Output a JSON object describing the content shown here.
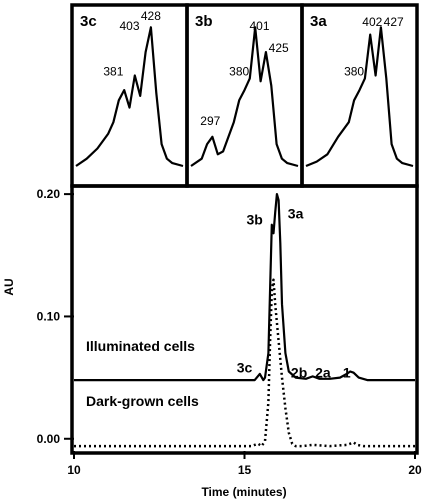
{
  "chart_data": [
    {
      "type": "line",
      "panel_label": "3c",
      "peak_labels": [
        {
          "text": "381",
          "x": 0.35,
          "y": 0.62
        },
        {
          "text": "403",
          "x": 0.5,
          "y": 0.93
        },
        {
          "text": "428",
          "x": 0.7,
          "y": 1.0
        }
      ],
      "spectrum": {
        "x": [
          0.0,
          0.1,
          0.2,
          0.3,
          0.35,
          0.4,
          0.45,
          0.5,
          0.55,
          0.6,
          0.65,
          0.7,
          0.75,
          0.8,
          0.85,
          0.9,
          1.0
        ],
        "y": [
          0.0,
          0.05,
          0.12,
          0.22,
          0.3,
          0.45,
          0.52,
          0.4,
          0.62,
          0.48,
          0.78,
          0.95,
          0.5,
          0.15,
          0.05,
          0.02,
          0.0
        ]
      }
    },
    {
      "type": "line",
      "panel_label": "3b",
      "peak_labels": [
        {
          "text": "297",
          "x": 0.18,
          "y": 0.28
        },
        {
          "text": "380",
          "x": 0.45,
          "y": 0.62
        },
        {
          "text": "401",
          "x": 0.64,
          "y": 0.93
        },
        {
          "text": "425",
          "x": 0.82,
          "y": 0.78
        }
      ],
      "spectrum": {
        "x": [
          0.0,
          0.1,
          0.15,
          0.2,
          0.25,
          0.3,
          0.4,
          0.45,
          0.5,
          0.55,
          0.6,
          0.65,
          0.7,
          0.75,
          0.8,
          0.85,
          0.9,
          1.0
        ],
        "y": [
          0.0,
          0.05,
          0.15,
          0.2,
          0.08,
          0.1,
          0.3,
          0.45,
          0.52,
          0.6,
          0.95,
          0.58,
          0.78,
          0.55,
          0.15,
          0.05,
          0.02,
          0.0
        ]
      }
    },
    {
      "type": "line",
      "panel_label": "3a",
      "peak_labels": [
        {
          "text": "380",
          "x": 0.45,
          "y": 0.62
        },
        {
          "text": "402",
          "x": 0.62,
          "y": 0.96
        },
        {
          "text": "427",
          "x": 0.82,
          "y": 0.96
        }
      ],
      "spectrum": {
        "x": [
          0.0,
          0.1,
          0.2,
          0.3,
          0.4,
          0.45,
          0.5,
          0.55,
          0.6,
          0.65,
          0.7,
          0.75,
          0.8,
          0.85,
          0.9,
          1.0
        ],
        "y": [
          0.0,
          0.03,
          0.08,
          0.2,
          0.3,
          0.45,
          0.52,
          0.6,
          0.9,
          0.62,
          0.95,
          0.6,
          0.15,
          0.05,
          0.02,
          0.0
        ]
      }
    },
    {
      "type": "line",
      "xlabel": "Time (minutes)",
      "ylabel": "AU",
      "xlim": [
        10,
        20
      ],
      "ylim": [
        -0.01,
        0.205
      ],
      "x_ticks": [
        "10",
        "15",
        "20"
      ],
      "x_tick_values": [
        10,
        15,
        20
      ],
      "y_ticks": [
        "0.00",
        "0.10",
        "0.20"
      ],
      "y_tick_values": [
        0.0,
        0.1,
        0.2
      ],
      "peak_labels": [
        {
          "text": "3b",
          "x": 15.3,
          "y": 0.175
        },
        {
          "text": "3a",
          "x": 16.5,
          "y": 0.18
        },
        {
          "text": "3c",
          "x": 15.0,
          "y": 0.054
        },
        {
          "text": "2b",
          "x": 16.6,
          "y": 0.05
        },
        {
          "text": "2a",
          "x": 17.3,
          "y": 0.05
        },
        {
          "text": "1",
          "x": 18.0,
          "y": 0.05
        }
      ],
      "series": [
        {
          "name": "Illuminated cells",
          "style": "solid",
          "x": [
            10.0,
            14.0,
            15.3,
            15.45,
            15.55,
            15.6,
            15.7,
            15.8,
            15.85,
            15.9,
            15.95,
            16.0,
            16.05,
            16.1,
            16.2,
            16.3,
            16.5,
            16.8,
            17.0,
            17.2,
            17.5,
            17.8,
            18.0,
            18.1,
            18.2,
            18.35,
            18.6,
            19.0,
            20.0
          ],
          "y": [
            0.048,
            0.048,
            0.048,
            0.053,
            0.048,
            0.05,
            0.07,
            0.175,
            0.168,
            0.185,
            0.2,
            0.195,
            0.16,
            0.11,
            0.07,
            0.055,
            0.05,
            0.049,
            0.051,
            0.049,
            0.049,
            0.05,
            0.053,
            0.055,
            0.054,
            0.05,
            0.048,
            0.048,
            0.048
          ]
        },
        {
          "name": "Dark-grown cells",
          "style": "dotted",
          "x": [
            10.0,
            14.0,
            15.2,
            15.4,
            15.5,
            15.6,
            15.7,
            15.75,
            15.8,
            15.85,
            15.9,
            16.0,
            16.1,
            16.2,
            16.3,
            16.4,
            16.5,
            16.7,
            17.0,
            17.5,
            18.0,
            18.1,
            18.2,
            18.3,
            18.5,
            19.0,
            20.0
          ],
          "y": [
            -0.006,
            -0.006,
            -0.006,
            -0.004,
            -0.006,
            -0.002,
            0.03,
            0.08,
            0.12,
            0.13,
            0.11,
            0.08,
            0.05,
            0.025,
            0.005,
            -0.004,
            -0.006,
            -0.006,
            -0.005,
            -0.006,
            -0.005,
            -0.004,
            -0.003,
            -0.005,
            -0.006,
            -0.006,
            -0.006
          ]
        }
      ]
    }
  ]
}
